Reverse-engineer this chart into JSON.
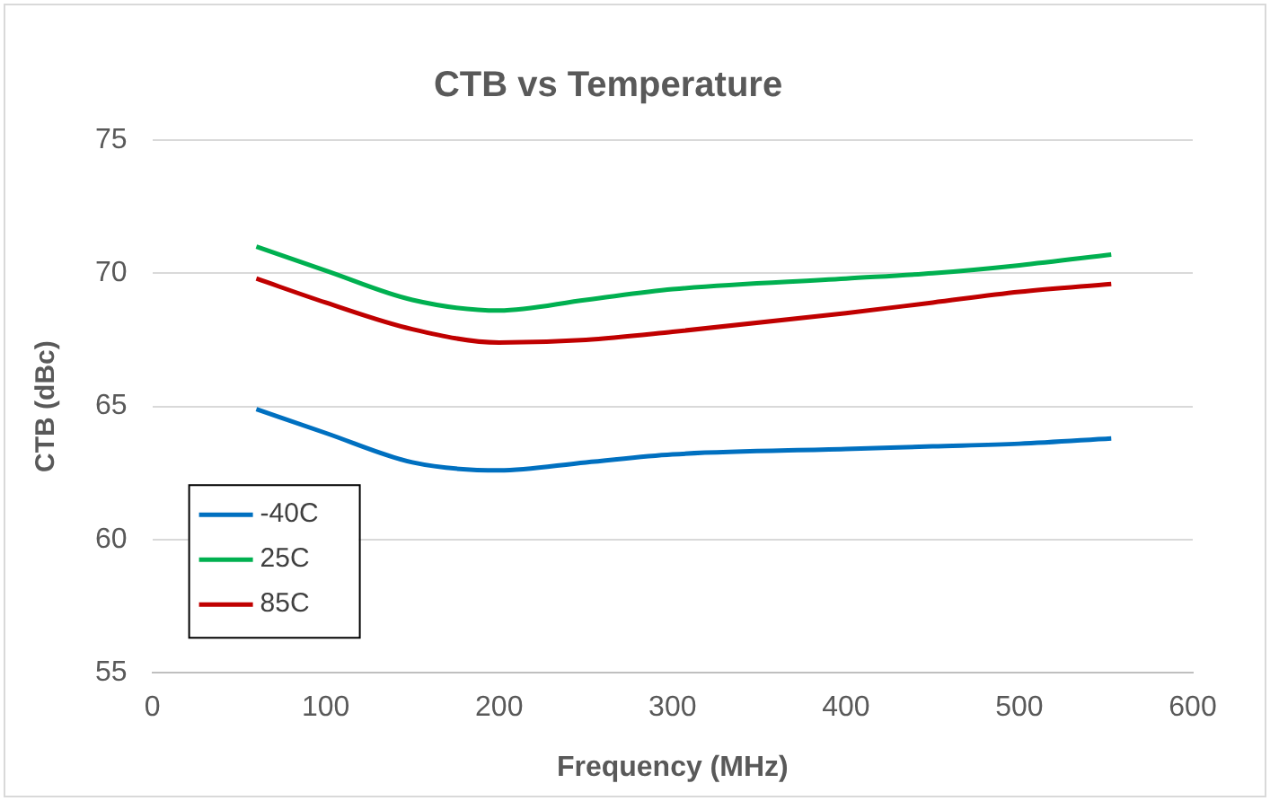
{
  "chart_data": {
    "type": "line",
    "title": "CTB vs Temperature",
    "xlabel": "Frequency (MHz)",
    "ylabel": "CTB (dBc)",
    "x": [
      60,
      100,
      150,
      200,
      250,
      300,
      400,
      450,
      500,
      553
    ],
    "series": [
      {
        "name": "-40C",
        "color": "#0070c0",
        "values": [
          64.9,
          64.0,
          62.9,
          62.6,
          62.9,
          63.2,
          63.4,
          63.5,
          63.6,
          63.8
        ]
      },
      {
        "name": "25C",
        "color": "#00b050",
        "values": [
          71.0,
          70.1,
          69.0,
          68.6,
          69.0,
          69.4,
          69.8,
          70.0,
          70.3,
          70.7
        ]
      },
      {
        "name": "85C",
        "color": "#c00000",
        "values": [
          69.8,
          68.9,
          67.9,
          67.4,
          67.5,
          67.8,
          68.5,
          68.9,
          69.3,
          69.6
        ]
      }
    ],
    "xlim": [
      0,
      600
    ],
    "xticks": [
      0,
      100,
      200,
      300,
      400,
      500,
      600
    ],
    "ylim": [
      55,
      75
    ],
    "yticks": [
      55,
      60,
      65,
      70,
      75
    ],
    "grid": "y",
    "legend": "bottom left",
    "marker": "none",
    "line_style": "solid"
  }
}
